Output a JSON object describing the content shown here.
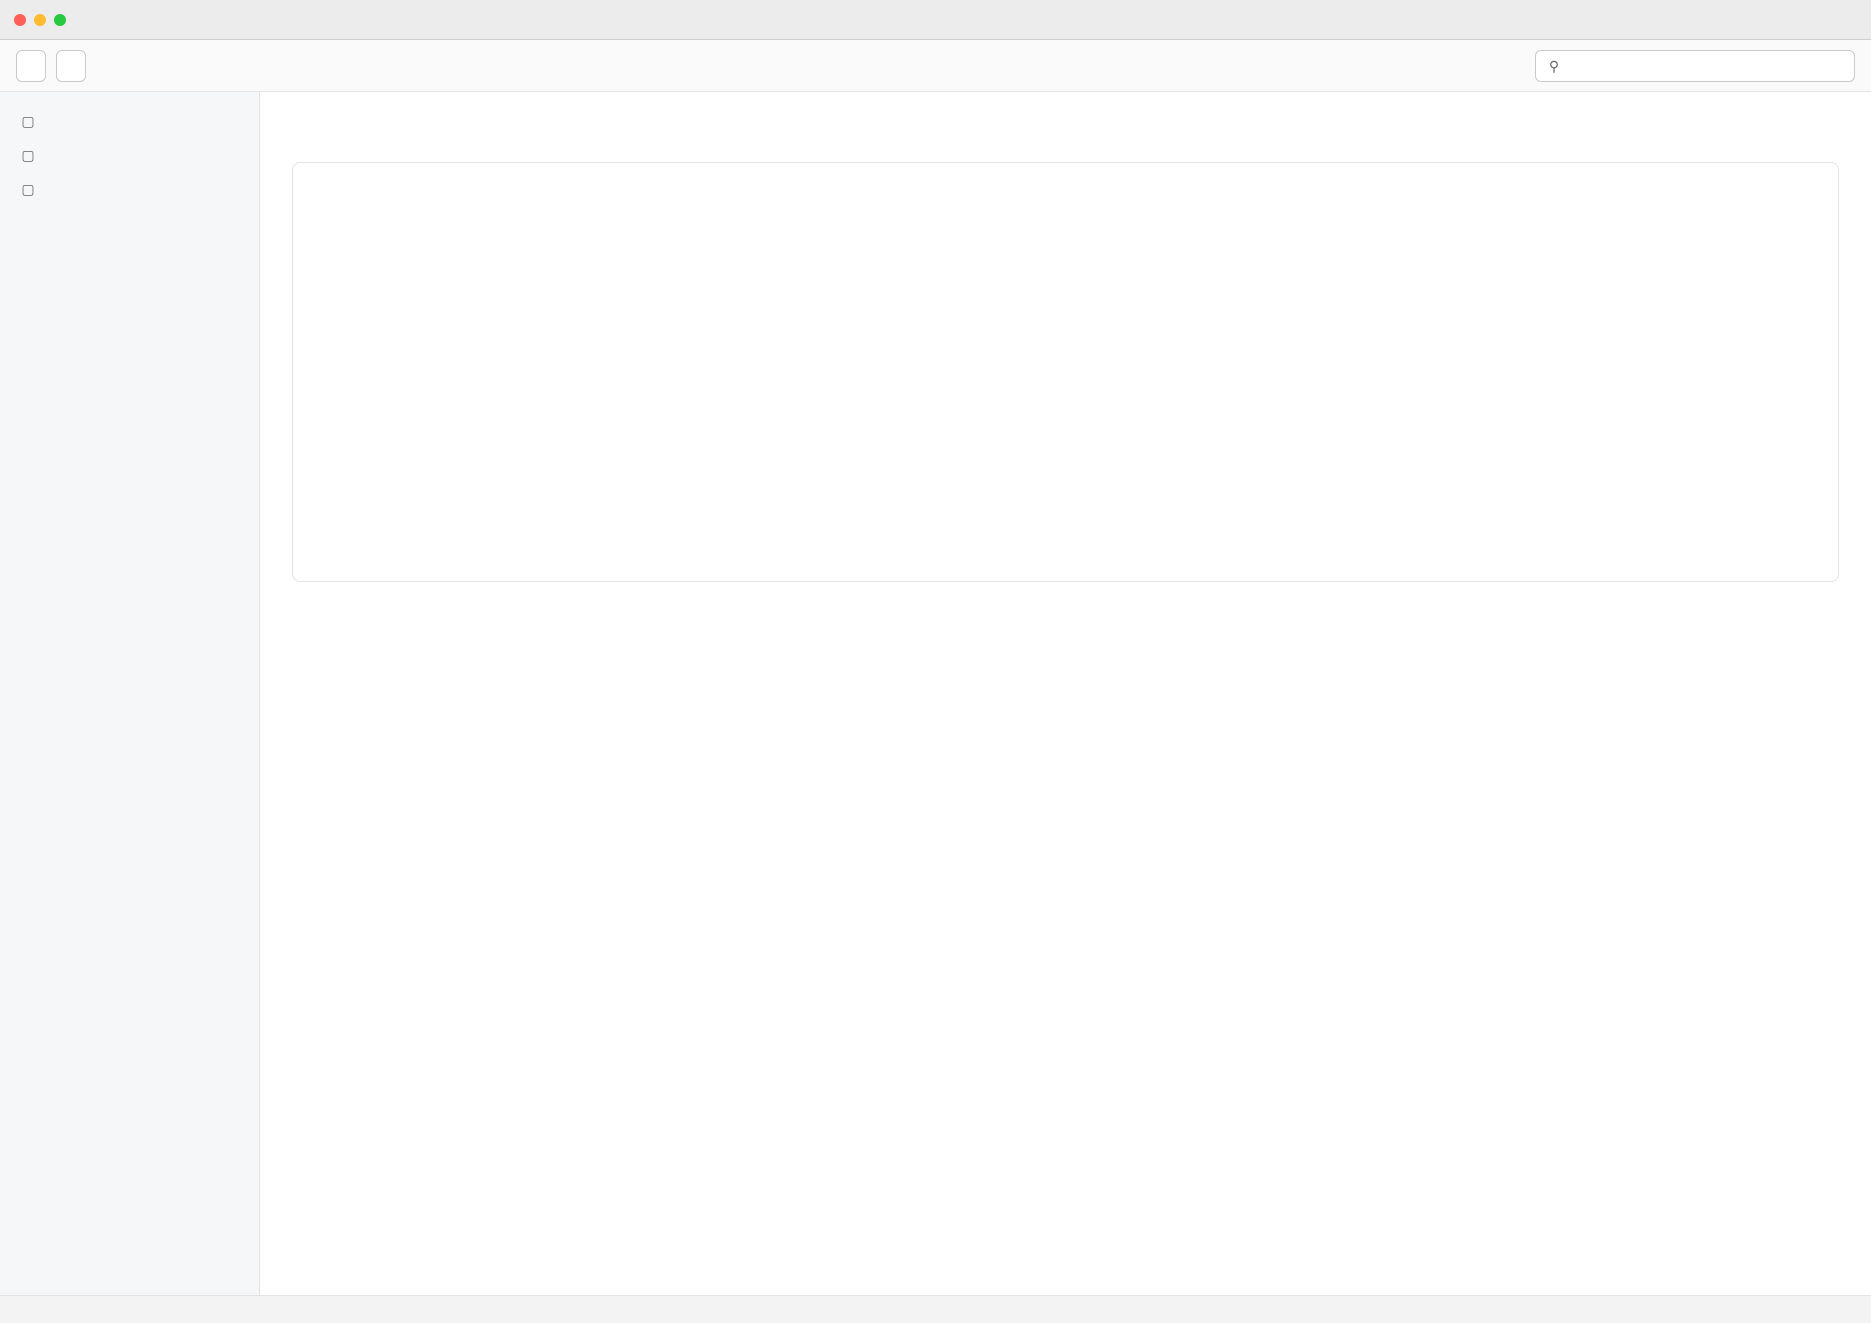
{
  "window": {
    "title": ""
  },
  "toolbar": {
    "primary_label": "",
    "secondary_label": ""
  },
  "search": {
    "placeholder": "",
    "value": ""
  },
  "sidebar": {
    "items": [
      {
        "label": ""
      },
      {
        "label": ""
      },
      {
        "label": ""
      }
    ]
  },
  "main": {
    "title": ""
  },
  "status": {
    "text": ""
  }
}
